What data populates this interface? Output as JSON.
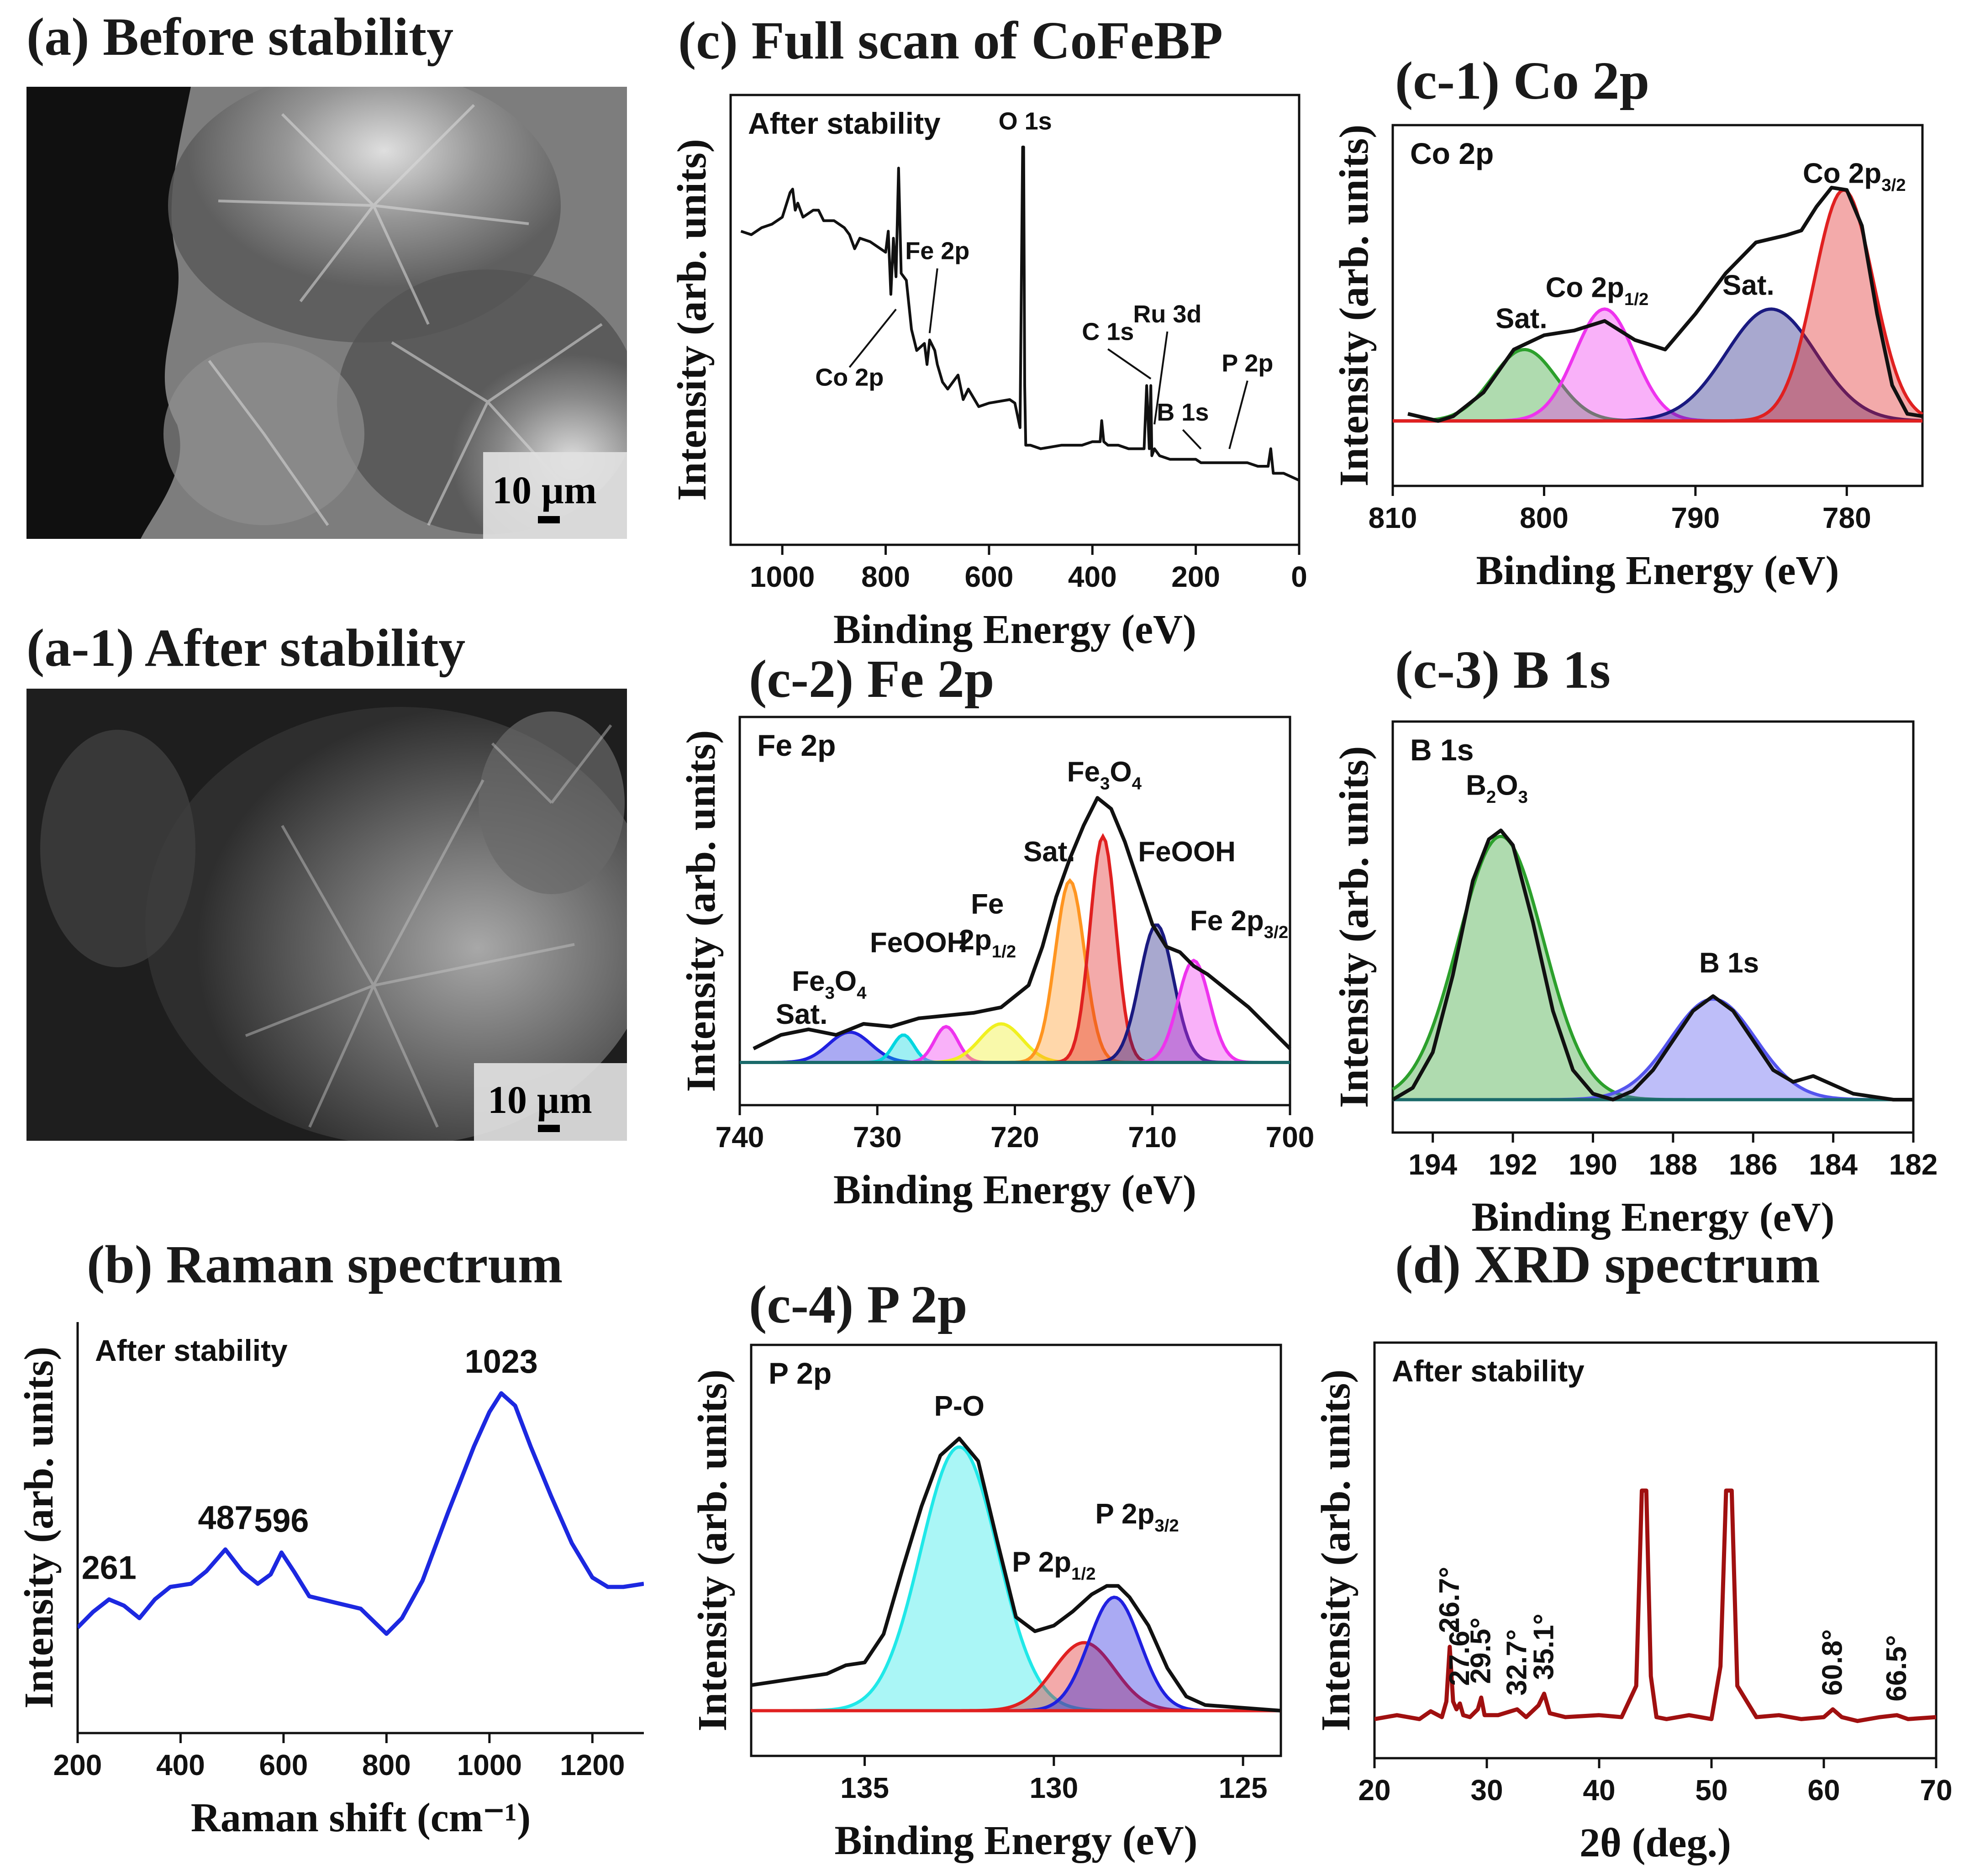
{
  "titles": {
    "a": "(a) Before stability",
    "a1": "(a-1) After  stability",
    "b": "(b) Raman spectrum",
    "c": "(c) Full scan of CoFeBP",
    "c1": "(c-1) Co 2p",
    "c2": "(c-2) Fe 2p",
    "c3": "(c-3) B 1s",
    "c4": "(c-4) P 2p",
    "d": "(d) XRD spectrum"
  },
  "sem": {
    "scale_label": "10 µm"
  },
  "colors": {
    "raman": "#1c28e0",
    "xrd": "#a01010",
    "sem_bg": "#4d4d4d"
  },
  "chart_data": [
    {
      "id": "raman",
      "type": "line",
      "title": "(b) Raman spectrum",
      "xlabel": "Raman shift (cm⁻¹)",
      "ylabel": "Intensity (arb. units)",
      "xlim": [
        200,
        1300
      ],
      "ylim": [
        0,
        1
      ],
      "xticks": [
        200,
        400,
        600,
        800,
        1000,
        1200
      ],
      "inset_label": "After stability",
      "x": [
        200,
        230,
        261,
        290,
        320,
        350,
        380,
        420,
        450,
        487,
        520,
        550,
        575,
        596,
        620,
        650,
        700,
        750,
        800,
        830,
        870,
        920,
        970,
        1000,
        1023,
        1050,
        1080,
        1120,
        1160,
        1200,
        1230,
        1260,
        1300
      ],
      "y": [
        0.18,
        0.23,
        0.27,
        0.25,
        0.21,
        0.27,
        0.31,
        0.32,
        0.36,
        0.43,
        0.36,
        0.32,
        0.35,
        0.42,
        0.36,
        0.28,
        0.26,
        0.24,
        0.16,
        0.21,
        0.33,
        0.55,
        0.76,
        0.87,
        0.93,
        0.89,
        0.76,
        0.6,
        0.45,
        0.34,
        0.31,
        0.31,
        0.32
      ],
      "peaks": [
        {
          "label": "261",
          "x": 261,
          "y": 0.27
        },
        {
          "label": "487",
          "x": 487,
          "y": 0.43
        },
        {
          "label": "596",
          "x": 596,
          "y": 0.42
        },
        {
          "label": "1023",
          "x": 1023,
          "y": 0.93
        }
      ]
    },
    {
      "id": "fullscan",
      "type": "line",
      "title": "(c) Full scan of CoFeBP",
      "xlabel": "Binding Energy (eV)",
      "ylabel": "Intensity (arb. units)",
      "xlim": [
        1100,
        0
      ],
      "ylim": [
        0,
        1
      ],
      "xticks": [
        1000,
        800,
        600,
        400,
        200,
        0
      ],
      "inset_label": "After stability",
      "x": [
        1080,
        1060,
        1040,
        1020,
        1000,
        985,
        980,
        975,
        970,
        960,
        940,
        930,
        920,
        900,
        880,
        870,
        860,
        850,
        830,
        800,
        795,
        790,
        785,
        780,
        775,
        770,
        760,
        750,
        740,
        725,
        720,
        715,
        705,
        700,
        690,
        680,
        660,
        650,
        640,
        620,
        600,
        560,
        550,
        540,
        535,
        533,
        531,
        529,
        520,
        500,
        460,
        420,
        400,
        385,
        382,
        378,
        370,
        350,
        330,
        300,
        295,
        290,
        287,
        285,
        280,
        270,
        250,
        220,
        200,
        190,
        160,
        140,
        120,
        100,
        80,
        60,
        55,
        50,
        30,
        0
      ],
      "y": [
        0.74,
        0.73,
        0.75,
        0.76,
        0.78,
        0.85,
        0.86,
        0.8,
        0.82,
        0.78,
        0.8,
        0.8,
        0.77,
        0.77,
        0.75,
        0.73,
        0.69,
        0.72,
        0.71,
        0.68,
        0.74,
        0.56,
        0.72,
        0.61,
        0.92,
        0.62,
        0.6,
        0.46,
        0.4,
        0.42,
        0.36,
        0.43,
        0.4,
        0.36,
        0.31,
        0.29,
        0.33,
        0.26,
        0.29,
        0.24,
        0.25,
        0.26,
        0.25,
        0.18,
        0.98,
        0.98,
        0.3,
        0.13,
        0.13,
        0.12,
        0.13,
        0.13,
        0.14,
        0.14,
        0.2,
        0.14,
        0.13,
        0.13,
        0.12,
        0.12,
        0.3,
        0.12,
        0.3,
        0.1,
        0.12,
        0.1,
        0.09,
        0.09,
        0.09,
        0.08,
        0.08,
        0.08,
        0.08,
        0.08,
        0.07,
        0.07,
        0.12,
        0.05,
        0.05,
        0.03
      ],
      "annotations": [
        {
          "label": "Co 2p",
          "x": 780,
          "y": 0.55,
          "tx": 870,
          "ty": 0.3
        },
        {
          "label": "Fe 2p",
          "x": 715,
          "y": 0.43,
          "tx": 700,
          "ty": 0.66
        },
        {
          "label": "O 1s",
          "x": 533,
          "y": 0.98,
          "tx": 530,
          "ty": 1.03
        },
        {
          "label": "C 1s",
          "x": 287,
          "y": 0.3,
          "tx": 370,
          "ty": 0.43
        },
        {
          "label": "Ru 3d",
          "x": 280,
          "y": 0.17,
          "tx": 255,
          "ty": 0.48
        },
        {
          "label": "B 1s",
          "x": 190,
          "y": 0.1,
          "tx": 225,
          "ty": 0.2
        },
        {
          "label": "P 2p",
          "x": 135,
          "y": 0.1,
          "tx": 100,
          "ty": 0.34
        }
      ]
    },
    {
      "id": "co2p",
      "type": "area",
      "title": "(c-1) Co 2p",
      "xlabel": "Binding Energy (eV)",
      "ylabel": "Intensity (arb. units)",
      "xlim": [
        810,
        775
      ],
      "ylim": [
        0,
        1
      ],
      "xticks": [
        810,
        800,
        790,
        780
      ],
      "inset_label": "Co 2p",
      "envelope_x": [
        809,
        807,
        806,
        804,
        802,
        800,
        798,
        796,
        794,
        792,
        790,
        788,
        786,
        784,
        783,
        782,
        781,
        780,
        779,
        778,
        777,
        776,
        775
      ],
      "envelope_y": [
        0.03,
        0.0,
        0.02,
        0.12,
        0.3,
        0.36,
        0.38,
        0.42,
        0.34,
        0.3,
        0.45,
        0.62,
        0.75,
        0.78,
        0.8,
        0.9,
        0.98,
        0.97,
        0.82,
        0.45,
        0.15,
        0.03,
        0.02
      ],
      "components": [
        {
          "name": "Sat.",
          "center": 801.3,
          "fwhm": 5.0,
          "height": 0.3,
          "color": "#2ca02c"
        },
        {
          "name": "Co 2p1/2",
          "center": 796.0,
          "fwhm": 4.6,
          "height": 0.47,
          "color": "#ee33ee"
        },
        {
          "name": "Sat.",
          "center": 785.0,
          "fwhm": 7.0,
          "height": 0.47,
          "color": "#1a1a80"
        },
        {
          "name": "Co 2p3/2",
          "center": 780.2,
          "fwhm": 4.6,
          "height": 0.97,
          "color": "#e02020"
        }
      ],
      "labels": [
        {
          "main": "Sat.",
          "sub": "",
          "x": 801.5,
          "y": 0.39
        },
        {
          "main": "Co 2p",
          "sub": "1/2",
          "x": 796.5,
          "y": 0.52
        },
        {
          "main": "Sat.",
          "sub": "",
          "x": 786.5,
          "y": 0.53
        },
        {
          "main": "Co 2p",
          "sub": "3/2",
          "x": 779.5,
          "y": 1.0
        }
      ]
    },
    {
      "id": "fe2p",
      "type": "area",
      "title": "(c-2) Fe 2p",
      "xlabel": "Binding Energy (eV)",
      "ylabel": "Intensity (arb. units)",
      "xlim": [
        740,
        700
      ],
      "ylim": [
        0,
        1
      ],
      "xticks": [
        740,
        730,
        720,
        710,
        700
      ],
      "inset_label": "Fe 2p",
      "envelope_x": [
        739,
        737,
        735,
        733,
        731,
        729,
        727,
        725,
        723,
        721,
        719,
        718,
        717,
        716,
        715,
        714,
        713,
        712,
        711,
        710,
        709,
        708,
        707,
        706,
        705,
        704,
        703,
        702,
        701,
        700
      ],
      "envelope_y": [
        0.05,
        0.1,
        0.12,
        0.1,
        0.14,
        0.13,
        0.16,
        0.17,
        0.18,
        0.2,
        0.28,
        0.42,
        0.6,
        0.74,
        0.86,
        0.96,
        0.92,
        0.8,
        0.65,
        0.5,
        0.42,
        0.4,
        0.35,
        0.32,
        0.28,
        0.24,
        0.2,
        0.15,
        0.1,
        0.05
      ],
      "components": [
        {
          "name": "Sat.",
          "center": 732.0,
          "fwhm": 3.6,
          "height": 0.11,
          "color": "#2020e0"
        },
        {
          "name": "Fe3O4",
          "center": 728.1,
          "fwhm": 1.8,
          "height": 0.1,
          "color": "#00d6e0"
        },
        {
          "name": "FeOOH",
          "center": 725.0,
          "fwhm": 2.0,
          "height": 0.13,
          "color": "#ee33ee"
        },
        {
          "name": "Fe 2p1/2",
          "center": 721.0,
          "fwhm": 3.6,
          "height": 0.14,
          "color": "#f0f020"
        },
        {
          "name": "Sat.",
          "center": 716.0,
          "fwhm": 2.5,
          "height": 0.66,
          "color": "#ff9520"
        },
        {
          "name": "Fe3O4",
          "center": 713.6,
          "fwhm": 2.2,
          "height": 0.82,
          "color": "#e02020"
        },
        {
          "name": "FeOOH",
          "center": 709.7,
          "fwhm": 2.9,
          "height": 0.5,
          "color": "#1a1a80"
        },
        {
          "name": "Fe 2p3/2",
          "center": 707.0,
          "fwhm": 2.7,
          "height": 0.37,
          "color": "#ee33ee"
        }
      ],
      "labels": [
        {
          "main": "Sat.",
          "sub": "",
          "x": 735.5,
          "y": 0.14
        },
        {
          "main": "Fe",
          "sub": "3",
          "tail": "O",
          "sub2": "4",
          "x": 733.5,
          "y": 0.26
        },
        {
          "main": "FeOOH",
          "sub": "",
          "x": 727.0,
          "y": 0.4
        },
        {
          "main": "Fe",
          "sub": "",
          "x": 722.0,
          "y": 0.54
        },
        {
          "main": "2p",
          "sub": "1/2",
          "x": 722.0,
          "y": 0.41
        },
        {
          "main": "Sat.",
          "sub": "",
          "x": 717.5,
          "y": 0.73
        },
        {
          "main": "Fe",
          "sub": "3",
          "tail": "O",
          "sub2": "4",
          "x": 713.5,
          "y": 1.02
        },
        {
          "main": "FeOOH",
          "sub": "",
          "x": 707.5,
          "y": 0.73
        },
        {
          "main": "Fe 2p",
          "sub": "3/2",
          "x": 703.7,
          "y": 0.48
        }
      ]
    },
    {
      "id": "b1s",
      "type": "area",
      "title": "(c-3) B 1s",
      "xlabel": "Binding Energy (eV)",
      "ylabel": "Intensity (arb. units)",
      "xlim": [
        195,
        182
      ],
      "ylim": [
        0,
        1
      ],
      "xticks": [
        194,
        192,
        190,
        188,
        186,
        184,
        182
      ],
      "inset_label": "B 1s",
      "envelope_x": [
        195,
        194.5,
        194,
        193.5,
        193,
        192.6,
        192.3,
        192,
        191.5,
        191,
        190.5,
        190,
        189.5,
        189,
        188.5,
        188,
        187.5,
        187,
        186.5,
        186,
        185.5,
        185,
        184.5,
        184,
        183.5,
        183,
        182.5,
        182
      ],
      "envelope_y": [
        0.0,
        0.04,
        0.16,
        0.42,
        0.74,
        0.88,
        0.91,
        0.86,
        0.6,
        0.3,
        0.1,
        0.02,
        0.0,
        0.03,
        0.1,
        0.2,
        0.3,
        0.35,
        0.3,
        0.2,
        0.1,
        0.06,
        0.08,
        0.05,
        0.02,
        0.01,
        0.0,
        0.0
      ],
      "components": [
        {
          "name": "B2O3",
          "center": 192.3,
          "fwhm": 2.5,
          "height": 0.89,
          "color": "#2ca02c"
        },
        {
          "name": "B 1s",
          "center": 187.0,
          "fwhm": 2.5,
          "height": 0.34,
          "color": "#5555ee"
        }
      ],
      "labels": [
        {
          "main": "B",
          "sub": "2",
          "tail": "O",
          "sub2": "3",
          "x": 192.4,
          "y": 1.03
        },
        {
          "main": "B 1s",
          "sub": "",
          "x": 186.6,
          "y": 0.43
        }
      ]
    },
    {
      "id": "p2p",
      "type": "area",
      "title": "(c-4) P 2p",
      "xlabel": "Binding Energy (eV)",
      "ylabel": "Intensity (arb. units)",
      "xlim": [
        138,
        124
      ],
      "ylim": [
        0,
        1
      ],
      "xticks": [
        135,
        130,
        125
      ],
      "inset_label": "P 2p",
      "envelope_x": [
        138,
        137,
        136,
        135.5,
        135,
        134.5,
        134,
        133.5,
        133,
        132.5,
        132,
        131.5,
        131,
        130.5,
        130,
        129.5,
        129,
        128.6,
        128.3,
        128,
        127.5,
        127,
        126.5,
        126,
        125,
        124
      ],
      "envelope_y": [
        0.09,
        0.11,
        0.13,
        0.16,
        0.17,
        0.27,
        0.5,
        0.72,
        0.9,
        0.96,
        0.88,
        0.6,
        0.33,
        0.28,
        0.3,
        0.35,
        0.41,
        0.44,
        0.44,
        0.4,
        0.3,
        0.15,
        0.05,
        0.02,
        0.01,
        0.0
      ],
      "components": [
        {
          "name": "P-O",
          "center": 132.5,
          "fwhm": 2.4,
          "height": 0.93,
          "color": "#20e8e8"
        },
        {
          "name": "P 2p1/2",
          "center": 129.2,
          "fwhm": 1.9,
          "height": 0.24,
          "color": "#e02020"
        },
        {
          "name": "P 2p3/2",
          "center": 128.4,
          "fwhm": 1.6,
          "height": 0.4,
          "color": "#2020e0"
        }
      ],
      "labels": [
        {
          "main": "P-O",
          "sub": "",
          "x": 132.5,
          "y": 1.04
        },
        {
          "main": "P 2p",
          "sub": "1/2",
          "x": 130.0,
          "y": 0.49
        },
        {
          "main": "P 2p",
          "sub": "3/2",
          "x": 127.8,
          "y": 0.66
        }
      ]
    },
    {
      "id": "xrd",
      "type": "line",
      "title": "(d) XRD spectrum",
      "xlabel": "2θ (deg.)",
      "ylabel": "Intensity (arb. units)",
      "xlim": [
        20,
        70
      ],
      "ylim": [
        0,
        1
      ],
      "xticks": [
        20,
        30,
        40,
        50,
        60,
        70
      ],
      "inset_label": "After stability",
      "x": [
        20,
        22,
        24,
        25,
        26,
        26.4,
        26.7,
        27.0,
        27.3,
        27.6,
        27.9,
        28.5,
        29.2,
        29.5,
        29.8,
        31,
        32.7,
        33.5,
        34.6,
        35.1,
        35.6,
        37,
        40,
        42,
        43.3,
        43.8,
        44.2,
        44.6,
        45.1,
        46,
        48,
        50,
        50.8,
        51.3,
        51.8,
        52.3,
        54,
        56,
        58,
        60,
        60.8,
        61.6,
        63,
        65,
        66.5,
        67.5,
        70
      ],
      "y": [
        0.03,
        0.05,
        0.03,
        0.07,
        0.04,
        0.12,
        0.4,
        0.12,
        0.08,
        0.11,
        0.05,
        0.04,
        0.08,
        0.14,
        0.05,
        0.05,
        0.08,
        0.04,
        0.1,
        0.16,
        0.06,
        0.04,
        0.05,
        0.04,
        0.2,
        1.2,
        1.2,
        0.25,
        0.04,
        0.03,
        0.05,
        0.03,
        0.3,
        1.2,
        1.2,
        0.2,
        0.04,
        0.05,
        0.03,
        0.04,
        0.08,
        0.04,
        0.02,
        0.04,
        0.05,
        0.03,
        0.04
      ],
      "peaks": [
        {
          "label": "26.7°",
          "x": 26.7,
          "y": 0.4
        },
        {
          "label": "27.6°",
          "x": 27.6,
          "y": 0.13
        },
        {
          "label": "29.5°",
          "x": 29.5,
          "y": 0.14
        },
        {
          "label": "32.7°",
          "x": 32.7,
          "y": 0.08
        },
        {
          "label": "35.1°",
          "x": 35.1,
          "y": 0.16
        },
        {
          "label": "60.8°",
          "x": 60.8,
          "y": 0.08
        },
        {
          "label": "66.5°",
          "x": 66.5,
          "y": 0.05
        }
      ]
    }
  ]
}
